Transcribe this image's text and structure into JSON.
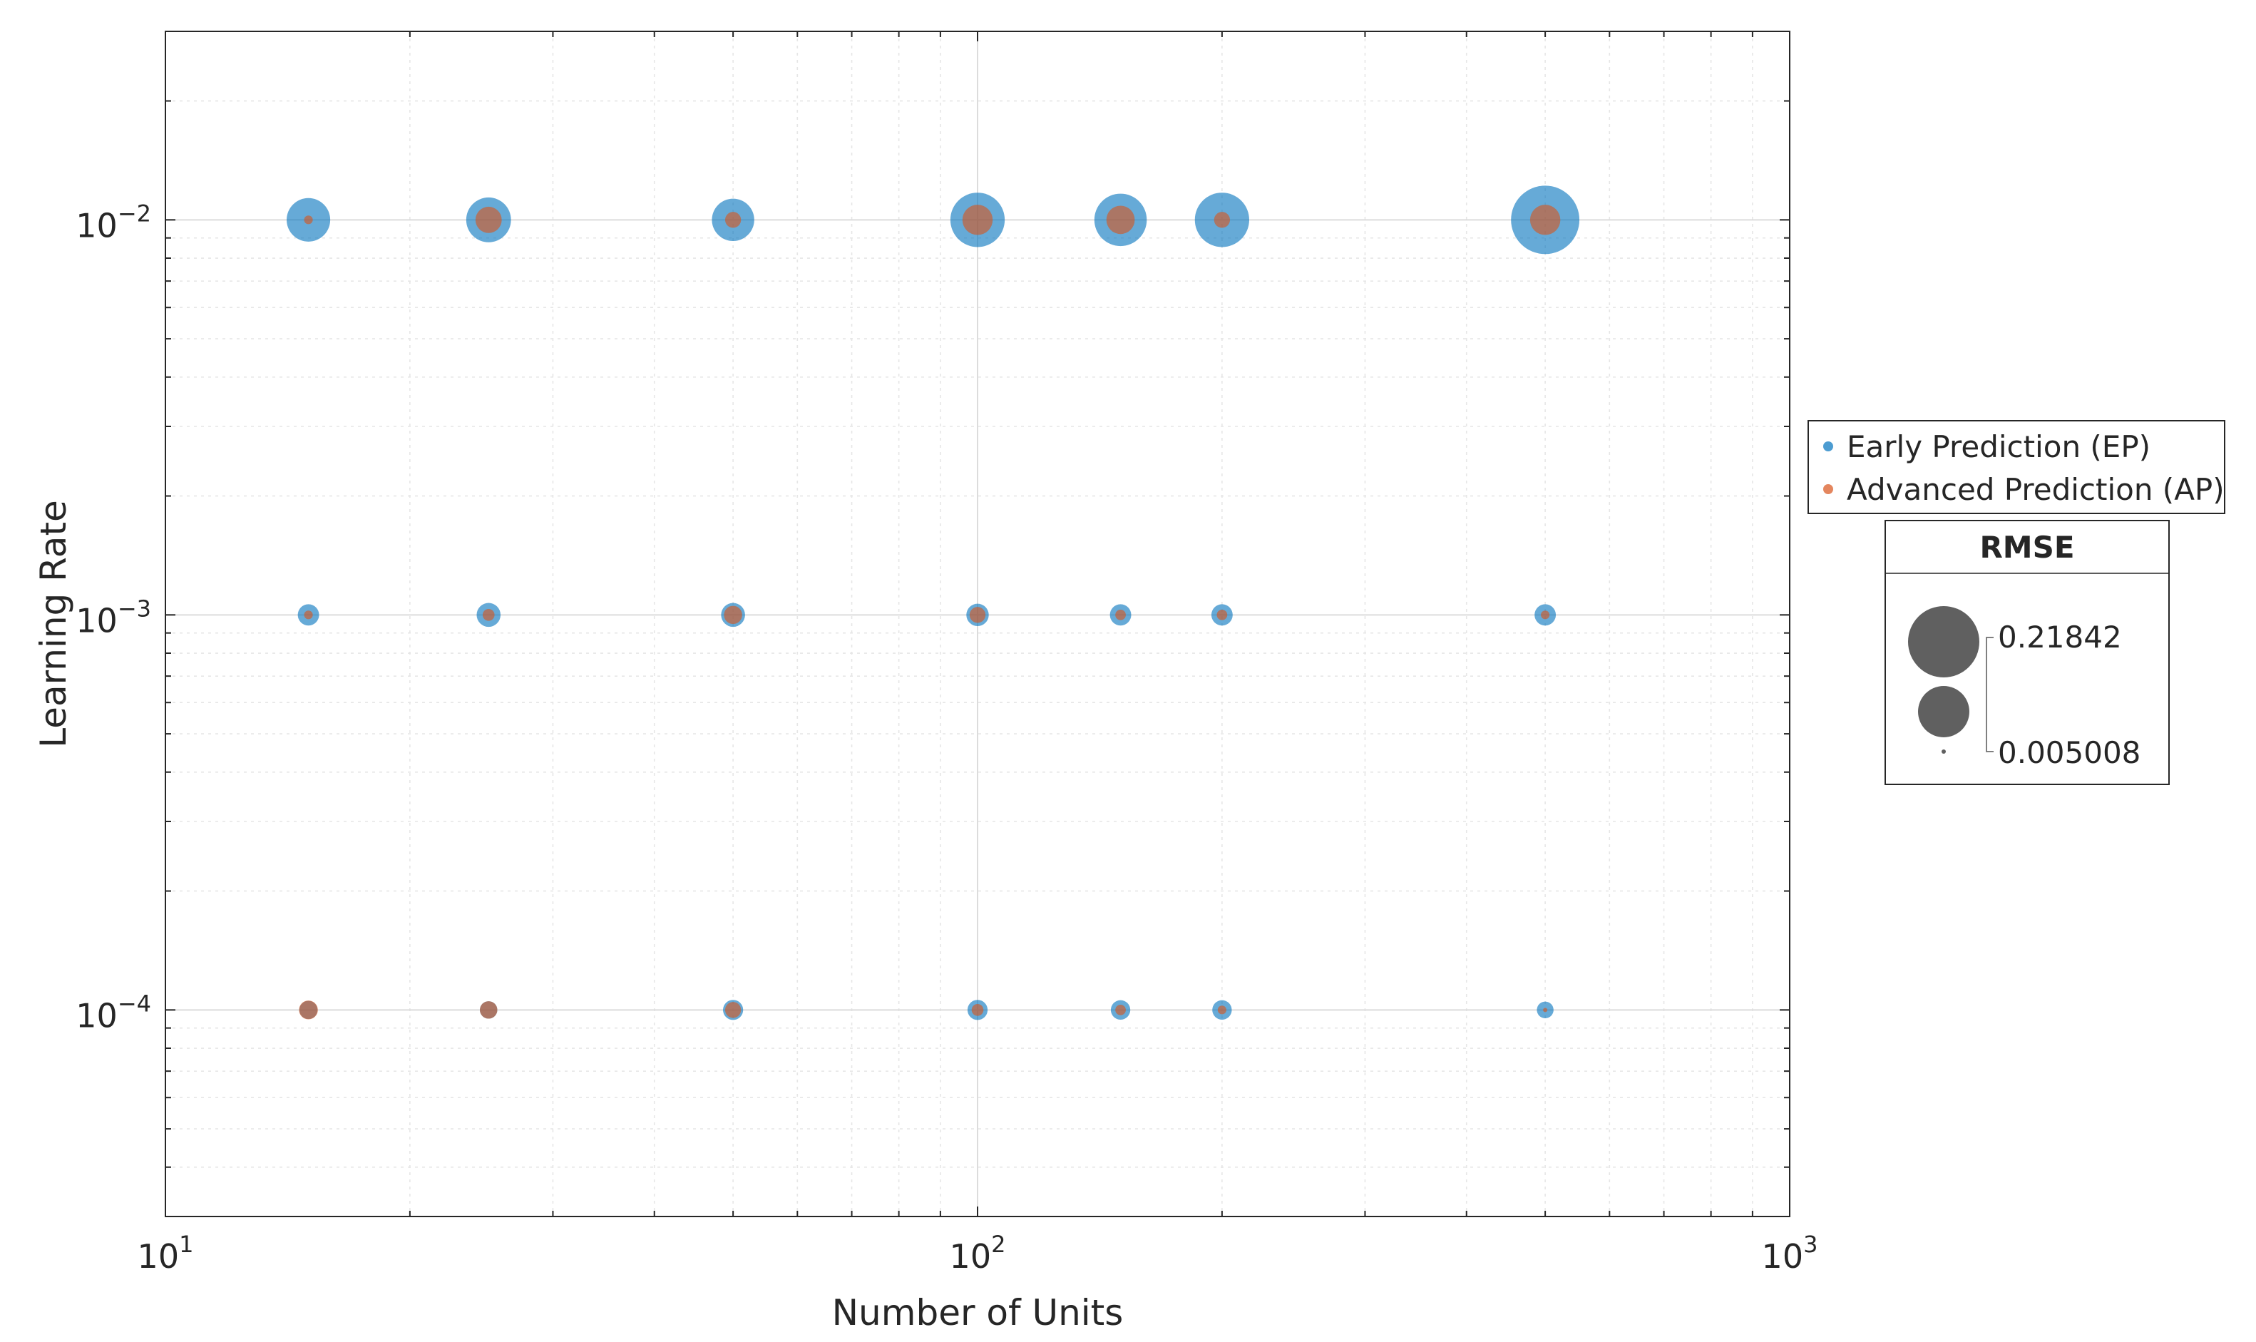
{
  "chart_data": {
    "type": "scatter",
    "subtype": "bubble",
    "title": "",
    "xlabel": "Number of Units",
    "ylabel": "Learning Rate",
    "xscale": "log",
    "yscale": "log",
    "xlim": [
      10,
      1000
    ],
    "ylim": [
      3e-05,
      0.03
    ],
    "grid": true,
    "minor_grid": true,
    "x_ticks": [
      {
        "base": "10",
        "exp": "1",
        "value": 10
      },
      {
        "base": "10",
        "exp": "2",
        "value": 100
      },
      {
        "base": "10",
        "exp": "3",
        "value": 1000
      }
    ],
    "y_ticks": [
      {
        "base": "10",
        "exp": "−4",
        "value": 0.0001
      },
      {
        "base": "10",
        "exp": "−3",
        "value": 0.001
      },
      {
        "base": "10",
        "exp": "−2",
        "value": 0.01
      }
    ],
    "legend_position": "right",
    "size_legend": {
      "title": "RMSE",
      "max_label": "0.21842",
      "min_label": "0.005008",
      "max_value": 0.21842,
      "min_value": 0.005008,
      "mid_value": 0.11
    },
    "series": [
      {
        "name": "Early Prediction (EP)",
        "color": "#0072BD",
        "points": [
          {
            "x": 15,
            "y": 0.01,
            "rmse": 0.085
          },
          {
            "x": 25,
            "y": 0.01,
            "rmse": 0.09
          },
          {
            "x": 50,
            "y": 0.01,
            "rmse": 0.08
          },
          {
            "x": 100,
            "y": 0.01,
            "rmse": 0.135
          },
          {
            "x": 150,
            "y": 0.01,
            "rmse": 0.125
          },
          {
            "x": 200,
            "y": 0.01,
            "rmse": 0.135
          },
          {
            "x": 500,
            "y": 0.01,
            "rmse": 0.218
          },
          {
            "x": 15,
            "y": 0.001,
            "rmse": 0.02
          },
          {
            "x": 25,
            "y": 0.001,
            "rmse": 0.025
          },
          {
            "x": 50,
            "y": 0.001,
            "rmse": 0.025
          },
          {
            "x": 100,
            "y": 0.001,
            "rmse": 0.022
          },
          {
            "x": 150,
            "y": 0.001,
            "rmse": 0.02
          },
          {
            "x": 200,
            "y": 0.001,
            "rmse": 0.02
          },
          {
            "x": 500,
            "y": 0.001,
            "rmse": 0.02
          },
          {
            "x": 15,
            "y": 0.0001,
            "rmse": 0.015
          },
          {
            "x": 25,
            "y": 0.0001,
            "rmse": 0.014
          },
          {
            "x": 50,
            "y": 0.0001,
            "rmse": 0.018
          },
          {
            "x": 100,
            "y": 0.0001,
            "rmse": 0.018
          },
          {
            "x": 150,
            "y": 0.0001,
            "rmse": 0.017
          },
          {
            "x": 200,
            "y": 0.0001,
            "rmse": 0.017
          },
          {
            "x": 500,
            "y": 0.0001,
            "rmse": 0.013
          }
        ]
      },
      {
        "name": "Advanced Prediction (AP)",
        "color": "#D95319",
        "points": [
          {
            "x": 15,
            "y": 0.01,
            "rmse": 0.006
          },
          {
            "x": 25,
            "y": 0.01,
            "rmse": 0.03
          },
          {
            "x": 50,
            "y": 0.01,
            "rmse": 0.012
          },
          {
            "x": 100,
            "y": 0.01,
            "rmse": 0.04
          },
          {
            "x": 150,
            "y": 0.01,
            "rmse": 0.035
          },
          {
            "x": 200,
            "y": 0.01,
            "rmse": 0.012
          },
          {
            "x": 500,
            "y": 0.01,
            "rmse": 0.04
          },
          {
            "x": 15,
            "y": 0.001,
            "rmse": 0.006
          },
          {
            "x": 25,
            "y": 0.001,
            "rmse": 0.008
          },
          {
            "x": 50,
            "y": 0.001,
            "rmse": 0.015
          },
          {
            "x": 100,
            "y": 0.001,
            "rmse": 0.012
          },
          {
            "x": 150,
            "y": 0.001,
            "rmse": 0.007
          },
          {
            "x": 200,
            "y": 0.001,
            "rmse": 0.007
          },
          {
            "x": 500,
            "y": 0.001,
            "rmse": 0.006
          },
          {
            "x": 15,
            "y": 0.0001,
            "rmse": 0.016
          },
          {
            "x": 25,
            "y": 0.0001,
            "rmse": 0.014
          },
          {
            "x": 50,
            "y": 0.0001,
            "rmse": 0.012
          },
          {
            "x": 100,
            "y": 0.0001,
            "rmse": 0.008
          },
          {
            "x": 150,
            "y": 0.0001,
            "rmse": 0.007
          },
          {
            "x": 200,
            "y": 0.0001,
            "rmse": 0.006
          },
          {
            "x": 500,
            "y": 0.0001,
            "rmse": 0.005
          }
        ]
      }
    ]
  }
}
